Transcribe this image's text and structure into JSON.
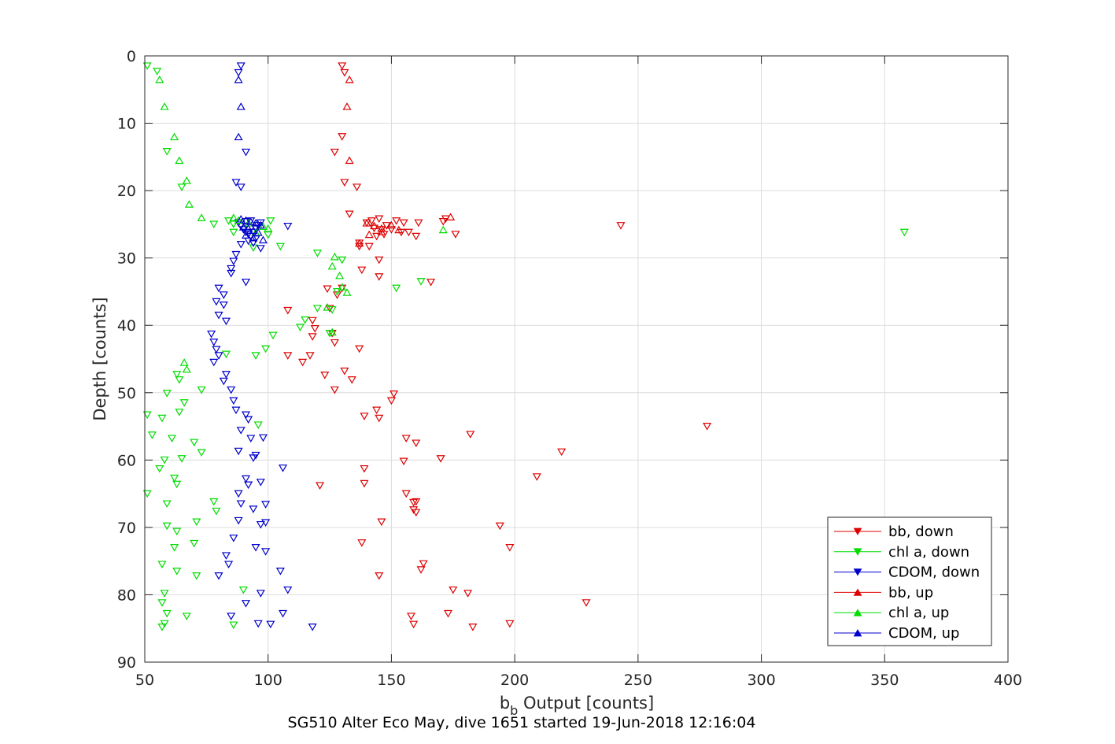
{
  "chart_data": {
    "type": "scatter",
    "title": "",
    "caption": "SG510 Alter Eco May, dive 1651 started 19-Jun-2018 12:16:04",
    "xlabel_main": "b",
    "xlabel_sub": "b",
    "xlabel_rest": " Output [counts]",
    "ylabel": "Depth [counts]",
    "xlim": [
      50,
      400
    ],
    "ylim": [
      0,
      90
    ],
    "y_reversed": true,
    "grid": true,
    "legend_position": "bottom-right",
    "x_ticks": [
      "50",
      "100",
      "150",
      "200",
      "250",
      "300",
      "350",
      "400"
    ],
    "y_ticks": [
      "0",
      "10",
      "20",
      "30",
      "40",
      "50",
      "60",
      "70",
      "80",
      "90"
    ],
    "series": [
      {
        "name": "bb, down",
        "color": "#dd0000",
        "marker": "triangle-down",
        "points": [
          [
            130,
            1.5
          ],
          [
            131,
            2.5
          ],
          [
            130,
            12
          ],
          [
            127,
            14.3
          ],
          [
            131,
            18.8
          ],
          [
            136,
            19.5
          ],
          [
            133,
            23.5
          ],
          [
            140,
            24.8
          ],
          [
            142,
            24.5
          ],
          [
            145,
            24.2
          ],
          [
            148,
            25.2
          ],
          [
            152,
            24.5
          ],
          [
            155,
            24.8
          ],
          [
            161,
            24.8
          ],
          [
            172,
            24.2
          ],
          [
            171,
            24.6
          ],
          [
            143,
            25.6
          ],
          [
            146,
            25.8
          ],
          [
            150,
            25.8
          ],
          [
            154,
            26.2
          ],
          [
            157,
            26.2
          ],
          [
            144,
            26.8
          ],
          [
            147,
            26.5
          ],
          [
            160,
            26.8
          ],
          [
            176,
            26.5
          ],
          [
            243,
            25.2
          ],
          [
            137,
            27.8
          ],
          [
            137,
            28.3
          ],
          [
            141,
            28.3
          ],
          [
            145,
            30.3
          ],
          [
            138,
            31.8
          ],
          [
            145,
            32.8
          ],
          [
            166,
            33.6
          ],
          [
            130,
            34.5
          ],
          [
            124,
            34.6
          ],
          [
            128,
            35.5
          ],
          [
            125,
            37.5
          ],
          [
            108,
            37.8
          ],
          [
            118,
            39.3
          ],
          [
            119,
            40.5
          ],
          [
            118,
            41.7
          ],
          [
            126,
            41.2
          ],
          [
            127,
            42.6
          ],
          [
            137,
            43.5
          ],
          [
            108,
            44.5
          ],
          [
            117,
            44.5
          ],
          [
            114,
            45.5
          ],
          [
            131,
            46.8
          ],
          [
            123,
            47.4
          ],
          [
            134,
            48.1
          ],
          [
            127,
            49.6
          ],
          [
            151,
            50.2
          ],
          [
            150,
            51.2
          ],
          [
            144,
            52.6
          ],
          [
            139,
            53.5
          ],
          [
            145,
            53.8
          ],
          [
            278,
            55
          ],
          [
            182,
            56.2
          ],
          [
            156,
            56.8
          ],
          [
            160,
            57.5
          ],
          [
            219,
            58.8
          ],
          [
            170,
            59.8
          ],
          [
            155,
            60.2
          ],
          [
            139,
            61.3
          ],
          [
            209,
            62.5
          ],
          [
            139,
            63.5
          ],
          [
            121,
            63.8
          ],
          [
            156,
            65
          ],
          [
            159,
            66.3
          ],
          [
            160,
            66.2
          ],
          [
            159,
            67.4
          ],
          [
            160,
            67.8
          ],
          [
            146,
            69.2
          ],
          [
            194,
            69.8
          ],
          [
            198,
            73
          ],
          [
            138,
            72.3
          ],
          [
            145,
            77.2
          ],
          [
            163,
            75.4
          ],
          [
            162,
            76.3
          ],
          [
            175,
            79.3
          ],
          [
            181,
            79.8
          ],
          [
            229,
            81.2
          ],
          [
            158,
            83.2
          ],
          [
            173,
            82.8
          ],
          [
            159,
            84.4
          ],
          [
            183,
            84.8
          ],
          [
            198,
            84.3
          ]
        ]
      },
      {
        "name": "chl a, down",
        "color": "#00dd00",
        "marker": "triangle-down",
        "points": [
          [
            51,
            1.5
          ],
          [
            55,
            2.3
          ],
          [
            59,
            14.2
          ],
          [
            65,
            19.5
          ],
          [
            78,
            25
          ],
          [
            84,
            24.5
          ],
          [
            86,
            25
          ],
          [
            88,
            24.8
          ],
          [
            86,
            26.2
          ],
          [
            100,
            26.6
          ],
          [
            101,
            24.5
          ],
          [
            105,
            28.3
          ],
          [
            94,
            28.5
          ],
          [
            358,
            26.2
          ],
          [
            120,
            29.3
          ],
          [
            130,
            30.3
          ],
          [
            162,
            33.5
          ],
          [
            128,
            35
          ],
          [
            126,
            37.7
          ],
          [
            120,
            37.5
          ],
          [
            113,
            40.3
          ],
          [
            115,
            39.2
          ],
          [
            125,
            41.2
          ],
          [
            102,
            41.5
          ],
          [
            99,
            43.5
          ],
          [
            95,
            44.5
          ],
          [
            83,
            44.3
          ],
          [
            63,
            47.3
          ],
          [
            64,
            48.1
          ],
          [
            59,
            50.1
          ],
          [
            73,
            49.6
          ],
          [
            51,
            53.3
          ],
          [
            57,
            53.8
          ],
          [
            64,
            52.9
          ],
          [
            66,
            51.5
          ],
          [
            53,
            56.3
          ],
          [
            61,
            56.8
          ],
          [
            70,
            57.4
          ],
          [
            73,
            58.9
          ],
          [
            58,
            60
          ],
          [
            56,
            61.3
          ],
          [
            65,
            59.8
          ],
          [
            62,
            62.7
          ],
          [
            63,
            63.6
          ],
          [
            51,
            65
          ],
          [
            59,
            66.5
          ],
          [
            78,
            66.2
          ],
          [
            79,
            67.6
          ],
          [
            59,
            69.8
          ],
          [
            63,
            70.6
          ],
          [
            71,
            69.2
          ],
          [
            62,
            73
          ],
          [
            70,
            72.4
          ],
          [
            57,
            75.5
          ],
          [
            63,
            76.5
          ],
          [
            71,
            77.2
          ],
          [
            58,
            79.8
          ],
          [
            57,
            81.2
          ],
          [
            59,
            82.8
          ],
          [
            58,
            84.3
          ],
          [
            57,
            84.8
          ],
          [
            67,
            83.2
          ],
          [
            86,
            84.5
          ],
          [
            90,
            79.3
          ],
          [
            96,
            54.8
          ],
          [
            152,
            34.5
          ]
        ]
      },
      {
        "name": "CDOM, down",
        "color": "#0000cc",
        "marker": "triangle-down",
        "points": [
          [
            89,
            1.5
          ],
          [
            88,
            2.5
          ],
          [
            91,
            14.3
          ],
          [
            87,
            18.8
          ],
          [
            89,
            19.5
          ],
          [
            88,
            24.8
          ],
          [
            89,
            25.3
          ],
          [
            90,
            25.8
          ],
          [
            91,
            26.2
          ],
          [
            92,
            26.5
          ],
          [
            93,
            26.8
          ],
          [
            94,
            26.2
          ],
          [
            95,
            25.6
          ],
          [
            96,
            25.2
          ],
          [
            97,
            24.8
          ],
          [
            93,
            24.5
          ],
          [
            91,
            24.6
          ],
          [
            95,
            27.2
          ],
          [
            92,
            27.5
          ],
          [
            94,
            27.8
          ],
          [
            108,
            25.3
          ],
          [
            89,
            28
          ],
          [
            97,
            28.6
          ],
          [
            87,
            29.5
          ],
          [
            86,
            30.5
          ],
          [
            85,
            31.6
          ],
          [
            85,
            32.3
          ],
          [
            91,
            33.6
          ],
          [
            80,
            34.5
          ],
          [
            82,
            35.5
          ],
          [
            79,
            36.5
          ],
          [
            82,
            37
          ],
          [
            80,
            38.5
          ],
          [
            83,
            39.4
          ],
          [
            77,
            41.3
          ],
          [
            78,
            42.5
          ],
          [
            79,
            43.6
          ],
          [
            80,
            44.5
          ],
          [
            78,
            45.5
          ],
          [
            83,
            47.3
          ],
          [
            82,
            48.3
          ],
          [
            85,
            49.6
          ],
          [
            86,
            51.2
          ],
          [
            87,
            52.6
          ],
          [
            91,
            53.3
          ],
          [
            92,
            54
          ],
          [
            89,
            55.6
          ],
          [
            93,
            56.8
          ],
          [
            98,
            56.7
          ],
          [
            88,
            58.7
          ],
          [
            94,
            59.7
          ],
          [
            95,
            59.3
          ],
          [
            106,
            61.2
          ],
          [
            91,
            62.8
          ],
          [
            92,
            63.7
          ],
          [
            97,
            63.3
          ],
          [
            88,
            65
          ],
          [
            89,
            66.5
          ],
          [
            99,
            66.6
          ],
          [
            94,
            67.3
          ],
          [
            88,
            69
          ],
          [
            97,
            69.6
          ],
          [
            99,
            69.3
          ],
          [
            86,
            71.6
          ],
          [
            95,
            73
          ],
          [
            99,
            73.6
          ],
          [
            83,
            74.2
          ],
          [
            84,
            75.5
          ],
          [
            80,
            77.2
          ],
          [
            105,
            76.5
          ],
          [
            91,
            81.3
          ],
          [
            97,
            79.8
          ],
          [
            108,
            79.3
          ],
          [
            85,
            83.2
          ],
          [
            96,
            84.3
          ],
          [
            101,
            84.4
          ],
          [
            106,
            82.8
          ],
          [
            118,
            84.8
          ]
        ]
      },
      {
        "name": "bb, up",
        "color": "#dd0000",
        "marker": "triangle-up",
        "points": [
          [
            133,
            3.5
          ],
          [
            132,
            7.5
          ],
          [
            133,
            15.5
          ],
          [
            140,
            24.8
          ],
          [
            143,
            25.2
          ],
          [
            146,
            25.6
          ],
          [
            150,
            25.1
          ],
          [
            153,
            25.8
          ],
          [
            141,
            26.5
          ],
          [
            146,
            26.1
          ],
          [
            174,
            23.9
          ],
          [
            137,
            27.8
          ]
        ]
      },
      {
        "name": "chl a, up",
        "color": "#00dd00",
        "marker": "triangle-up",
        "points": [
          [
            56,
            3.5
          ],
          [
            58,
            7.5
          ],
          [
            62,
            12
          ],
          [
            64,
            15.5
          ],
          [
            67,
            18.5
          ],
          [
            68,
            22
          ],
          [
            73,
            24
          ],
          [
            86,
            24
          ],
          [
            88,
            24.4
          ],
          [
            92,
            24.8
          ],
          [
            98,
            25.3
          ],
          [
            100,
            25.6
          ],
          [
            95,
            26.2
          ],
          [
            171,
            25.8
          ],
          [
            127,
            29.8
          ],
          [
            126,
            31.2
          ],
          [
            129,
            32.6
          ],
          [
            130,
            34.3
          ],
          [
            132,
            35.1
          ],
          [
            124,
            37.3
          ],
          [
            126,
            41
          ],
          [
            66,
            45.5
          ],
          [
            67,
            46.5
          ]
        ]
      },
      {
        "name": "CDOM, up",
        "color": "#0000cc",
        "marker": "triangle-up",
        "points": [
          [
            88,
            3.5
          ],
          [
            89,
            7.5
          ],
          [
            88,
            12
          ],
          [
            89,
            24.2
          ],
          [
            91,
            24.4
          ],
          [
            93,
            24.6
          ],
          [
            95,
            24.8
          ],
          [
            97,
            25.1
          ],
          [
            90,
            25.4
          ],
          [
            92,
            25.6
          ],
          [
            94,
            25.9
          ],
          [
            96,
            26.2
          ],
          [
            91,
            26.6
          ],
          [
            94,
            27
          ],
          [
            98,
            27.3
          ]
        ]
      }
    ]
  }
}
